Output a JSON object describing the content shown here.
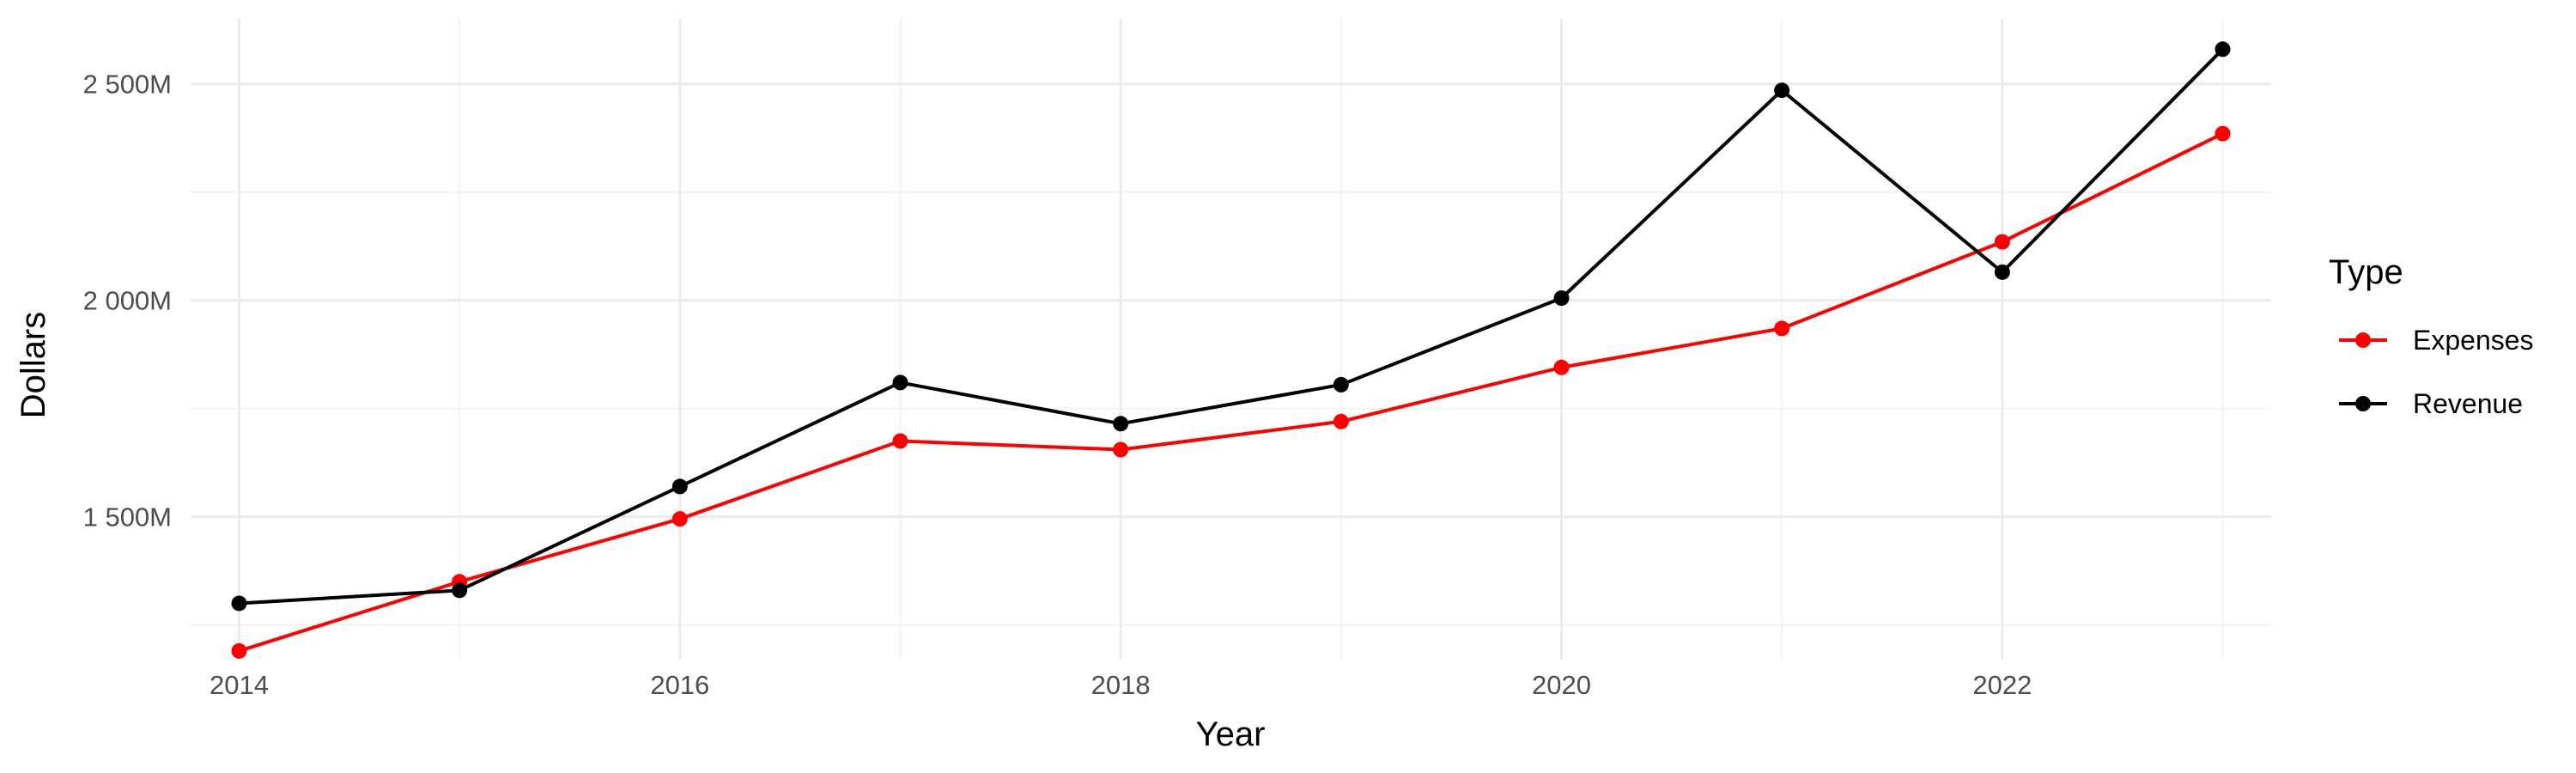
{
  "chart_data": {
    "type": "line",
    "title": "",
    "xlabel": "Year",
    "ylabel": "Dollars",
    "x": [
      2014,
      2015,
      2016,
      2017,
      2018,
      2019,
      2020,
      2021,
      2022,
      2023
    ],
    "xlim": [
      2013.78,
      2023.22
    ],
    "ylim": [
      1170,
      2650
    ],
    "x_ticks": [
      2014,
      2016,
      2018,
      2020,
      2022
    ],
    "y_ticks": [
      1500,
      2000,
      2500
    ],
    "y_tick_labels": [
      "1 500M",
      "2 000M",
      "2 500M"
    ],
    "grid": true,
    "legend": {
      "title": "Type",
      "position": "right"
    },
    "series": [
      {
        "name": "Expenses",
        "color": "#ff0000",
        "values": [
          1190,
          1350,
          1495,
          1675,
          1655,
          1720,
          1845,
          1935,
          2135,
          2385
        ]
      },
      {
        "name": "Revenue",
        "color": "#000000",
        "values": [
          1300,
          1330,
          1570,
          1810,
          1715,
          1805,
          2005,
          2485,
          2065,
          2580
        ]
      }
    ]
  }
}
